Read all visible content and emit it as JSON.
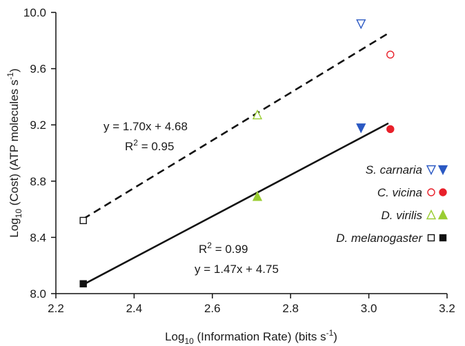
{
  "chart_data": {
    "type": "scatter",
    "xlim": [
      2.2,
      3.2
    ],
    "ylim": [
      8.0,
      10.0
    ],
    "x_ticks": [
      "2.2",
      "2.4",
      "2.6",
      "2.8",
      "3.0",
      "3.2"
    ],
    "y_ticks": [
      "8.0",
      "8.4",
      "8.8",
      "9.2",
      "9.6",
      "10.0"
    ],
    "xlabel": {
      "prefix": "Log",
      "prefix_sub": "10",
      "main": " (Information Rate) (bits s",
      "sup": "-1",
      "suffix": ")"
    },
    "ylabel": {
      "prefix": "Log",
      "prefix_sub": "10",
      "main": " (Cost) (ATP molecules s",
      "sup": "-1",
      "suffix": ")"
    },
    "grid": false,
    "legend_position": "right",
    "legend": [
      {
        "name": "S. carnaria",
        "color": "#2b59c3",
        "marker": "triangle-down"
      },
      {
        "name": "C. vicina",
        "color": "#e8202a",
        "marker": "circle"
      },
      {
        "name": "D. virilis",
        "color": "#9acd32",
        "marker": "triangle-up"
      },
      {
        "name": "D. melanogaster",
        "color": "#111111",
        "marker": "square"
      }
    ],
    "series": [
      {
        "name": "open",
        "fill": "open",
        "points": [
          {
            "x": 2.27,
            "y": 8.52,
            "marker": "square",
            "color": "#111111"
          },
          {
            "x": 2.715,
            "y": 9.27,
            "marker": "triangle-up",
            "color": "#9acd32"
          },
          {
            "x": 2.98,
            "y": 9.92,
            "marker": "triangle-down",
            "color": "#2b59c3"
          },
          {
            "x": 3.055,
            "y": 9.7,
            "marker": "circle",
            "color": "#e8202a"
          }
        ]
      },
      {
        "name": "filled",
        "fill": "filled",
        "points": [
          {
            "x": 2.27,
            "y": 8.07,
            "marker": "square",
            "color": "#111111"
          },
          {
            "x": 2.715,
            "y": 8.69,
            "marker": "triangle-up",
            "color": "#9acd32"
          },
          {
            "x": 2.98,
            "y": 9.18,
            "marker": "triangle-down",
            "color": "#2b59c3"
          },
          {
            "x": 3.055,
            "y": 9.17,
            "marker": "circle",
            "color": "#e8202a"
          }
        ]
      }
    ],
    "fits": [
      {
        "series": "open",
        "style": "dashed",
        "x_range": [
          2.27,
          3.05
        ],
        "equation": "y = 1.70x + 4.68",
        "r2_label": "R",
        "r2_sup": "2",
        "r2_value": " = 0.95"
      },
      {
        "series": "filled",
        "style": "solid",
        "x_range": [
          2.27,
          3.05
        ],
        "equation": "y = 1.47x + 4.75",
        "r2_label": "R",
        "r2_sup": "2",
        "r2_value": " = 0.99"
      }
    ]
  }
}
